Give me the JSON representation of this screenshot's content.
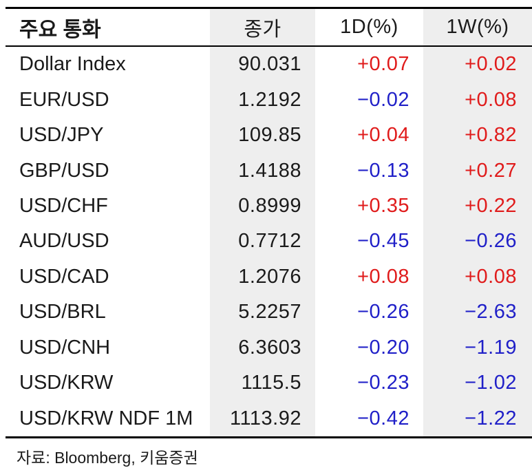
{
  "table": {
    "columns": [
      {
        "label": "주요 통화"
      },
      {
        "label": "종가"
      },
      {
        "label": "1D(%)"
      },
      {
        "label": "1W(%)"
      }
    ],
    "rows": [
      {
        "name": "Dollar Index",
        "close": "90.031",
        "d1": "+0.07",
        "w1": "+0.02"
      },
      {
        "name": "EUR/USD",
        "close": "1.2192",
        "d1": "−0.02",
        "w1": "+0.08"
      },
      {
        "name": "USD/JPY",
        "close": "109.85",
        "d1": "+0.04",
        "w1": "+0.82"
      },
      {
        "name": "GBP/USD",
        "close": "1.4188",
        "d1": "−0.13",
        "w1": "+0.27"
      },
      {
        "name": "USD/CHF",
        "close": "0.8999",
        "d1": "+0.35",
        "w1": "+0.22"
      },
      {
        "name": "AUD/USD",
        "close": "0.7712",
        "d1": "−0.45",
        "w1": "−0.26"
      },
      {
        "name": "USD/CAD",
        "close": "1.2076",
        "d1": "+0.08",
        "w1": "+0.08"
      },
      {
        "name": "USD/BRL",
        "close": "5.2257",
        "d1": "−0.26",
        "w1": "−2.63"
      },
      {
        "name": "USD/CNH",
        "close": "6.3603",
        "d1": "−0.20",
        "w1": "−1.19"
      },
      {
        "name": "USD/KRW",
        "close": "1115.5",
        "d1": "−0.23",
        "w1": "−1.02"
      },
      {
        "name": "USD/KRW NDF 1M",
        "close": "1113.92",
        "d1": "−0.42",
        "w1": "−1.22"
      }
    ]
  },
  "footer": {
    "source": "자료: Bloomberg, 키움증권"
  },
  "colors": {
    "up": "#e01b1b",
    "down": "#2020c8",
    "band": "#eeeeee",
    "text": "#1a1a1a",
    "border": "#000000"
  }
}
